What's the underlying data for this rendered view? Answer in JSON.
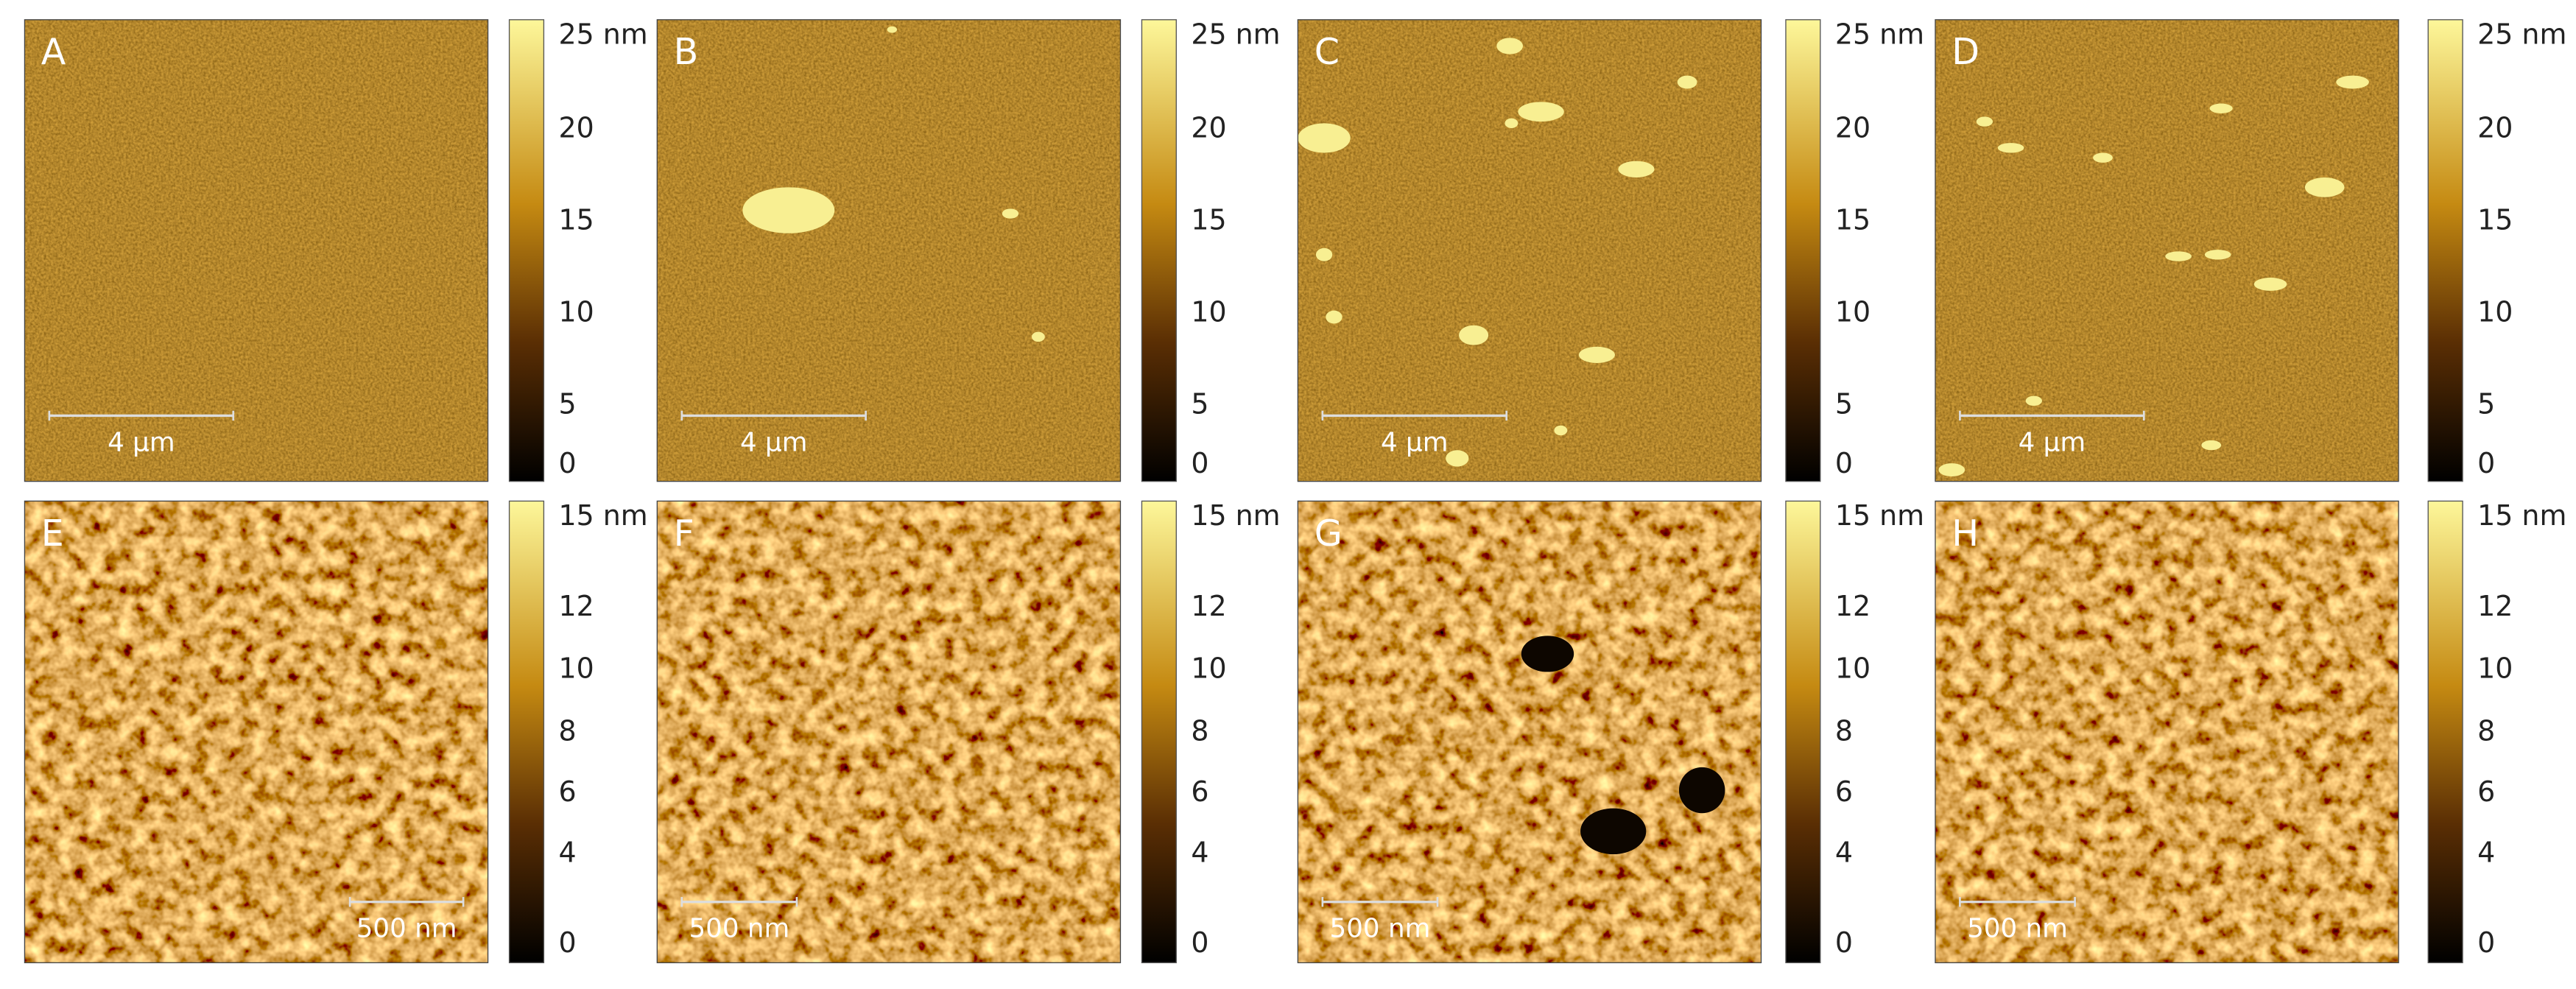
{
  "panels": [
    {
      "label": "A",
      "scale_bar": "4 µm",
      "colorbar_ticks": [
        "25 nm",
        "20",
        "15",
        "10",
        "5",
        "0"
      ]
    },
    {
      "label": "B",
      "scale_bar": "4 µm",
      "colorbar_ticks": [
        "25 nm",
        "20",
        "15",
        "10",
        "5",
        "0"
      ]
    },
    {
      "label": "C",
      "scale_bar": "4 µm",
      "colorbar_ticks": [
        "25 nm",
        "20",
        "15",
        "10",
        "5",
        "0"
      ]
    },
    {
      "label": "D",
      "scale_bar": "4 µm",
      "colorbar_ticks": [
        "25 nm",
        "20",
        "15",
        "10",
        "5",
        "0"
      ]
    },
    {
      "label": "E",
      "scale_bar": "500 nm",
      "colorbar_ticks": [
        "15 nm",
        "12",
        "10",
        "8",
        "6",
        "4",
        "0"
      ]
    },
    {
      "label": "F",
      "scale_bar": "500 nm",
      "colorbar_ticks": [
        "15 nm",
        "12",
        "10",
        "8",
        "6",
        "4",
        "0"
      ]
    },
    {
      "label": "G",
      "scale_bar": "500 nm",
      "colorbar_ticks": [
        "15 nm",
        "12",
        "10",
        "8",
        "6",
        "4",
        "0"
      ]
    },
    {
      "label": "H",
      "scale_bar": "500 nm",
      "colorbar_ticks": [
        "15 nm",
        "12",
        "10",
        "8",
        "6",
        "4",
        "0"
      ]
    }
  ]
}
